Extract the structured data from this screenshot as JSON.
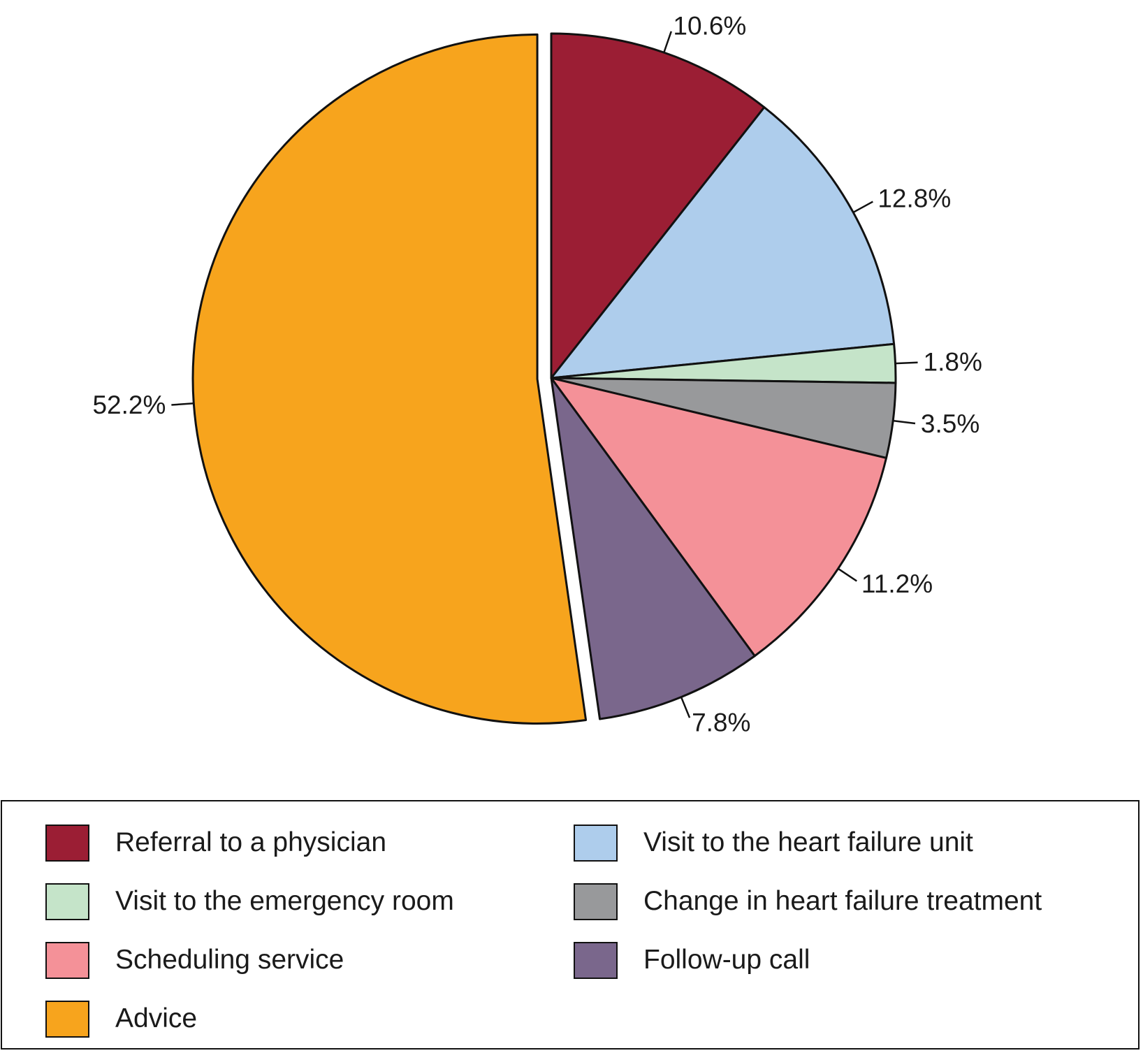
{
  "chart_data": {
    "type": "pie",
    "title": "",
    "start_angle": "12 o'clock, clockwise",
    "slices": [
      {
        "name": "Referral to a physician",
        "value": 10.6,
        "label": "10.6%",
        "color": "#9b1e34",
        "exploded": false
      },
      {
        "name": "Visit to the heart failure unit",
        "value": 12.8,
        "label": "12.8%",
        "color": "#aecdec",
        "exploded": false
      },
      {
        "name": "Visit to the emergency room",
        "value": 1.8,
        "label": "1.8%",
        "color": "#c5e4c9",
        "exploded": false
      },
      {
        "name": "Change in heart failure treatment",
        "value": 3.5,
        "label": "3.5%",
        "color": "#98999b",
        "exploded": false
      },
      {
        "name": "Scheduling service",
        "value": 11.2,
        "label": "11.2%",
        "color": "#f49198",
        "exploded": false
      },
      {
        "name": "Follow-up call",
        "value": 7.8,
        "label": "7.8%",
        "color": "#7a678c",
        "exploded": false
      },
      {
        "name": "Advice",
        "value": 52.2,
        "label": "52.2%",
        "color": "#f7a41d",
        "exploded": true
      }
    ],
    "legend": {
      "placement": "bottom",
      "columns": [
        [
          "Referral to a physician",
          "Visit to the emergency room",
          "Scheduling service",
          "Advice"
        ],
        [
          "Visit to the heart failure unit",
          "Change in heart failure treatment",
          "Follow-up call"
        ]
      ]
    }
  }
}
